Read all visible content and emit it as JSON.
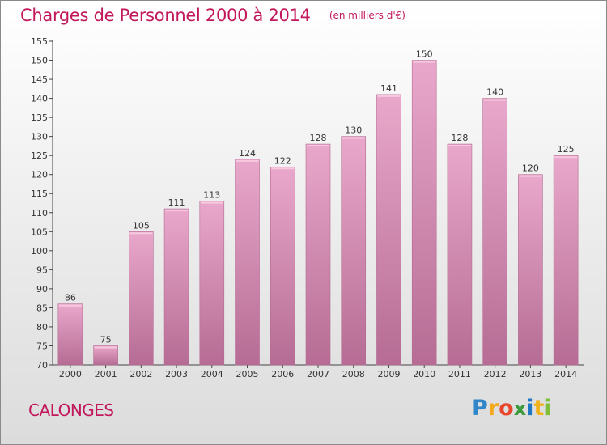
{
  "title": "Charges de Personnel 2000 à 2014",
  "unit_note": "(en milliers d'€)",
  "commune": "CALONGES",
  "brand": {
    "letters": [
      "P",
      "r",
      "o",
      "x",
      "i",
      "t",
      "i"
    ]
  },
  "colors": {
    "title": "#c2185b",
    "bar_top": "#e8a6ca",
    "bar_bottom": "#b56a93",
    "frame": "#8a8a8a"
  },
  "chart_data": {
    "type": "bar",
    "categories": [
      "2000",
      "2001",
      "2002",
      "2003",
      "2004",
      "2005",
      "2006",
      "2007",
      "2008",
      "2009",
      "2010",
      "2011",
      "2012",
      "2013",
      "2014"
    ],
    "values": [
      86,
      75,
      105,
      111,
      113,
      124,
      122,
      128,
      130,
      141,
      150,
      128,
      140,
      120,
      125
    ],
    "ylim": [
      70,
      155
    ],
    "yticks": [
      70,
      75,
      80,
      85,
      90,
      95,
      100,
      105,
      110,
      115,
      120,
      125,
      130,
      135,
      140,
      145,
      150,
      155
    ],
    "grid": false,
    "data_labels": true
  }
}
